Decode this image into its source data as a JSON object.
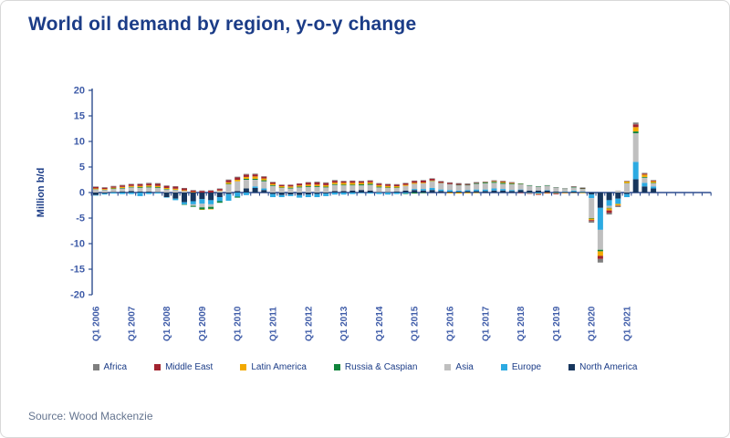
{
  "page": {
    "title": "World oil demand by region, y-o-y change",
    "source": "Source: Wood Mackenzie"
  },
  "colors": {
    "title_navy": "#1b3c87",
    "axis_blue": "#3f5ca8",
    "axis_line": "#2e4d8f",
    "source_gray": "#64748f"
  },
  "chart_data": {
    "type": "bar",
    "stacked": true,
    "title": "World oil demand by region, y-o-y change",
    "ylabel": "Million b/d",
    "ylim": [
      -20,
      20
    ],
    "ytick_step": 5,
    "grid": false,
    "legend_position": "bottom",
    "categories": [
      "Q1 2006",
      "Q2 2006",
      "Q3 2006",
      "Q4 2006",
      "Q1 2007",
      "Q2 2007",
      "Q3 2007",
      "Q4 2007",
      "Q1 2008",
      "Q2 2008",
      "Q3 2008",
      "Q4 2008",
      "Q1 2009",
      "Q2 2009",
      "Q3 2009",
      "Q4 2009",
      "Q1 2010",
      "Q2 2010",
      "Q3 2010",
      "Q4 2010",
      "Q1 2011",
      "Q2 2011",
      "Q3 2011",
      "Q4 2011",
      "Q1 2012",
      "Q2 2012",
      "Q3 2012",
      "Q4 2012",
      "Q1 2013",
      "Q2 2013",
      "Q3 2013",
      "Q4 2013",
      "Q1 2014",
      "Q2 2014",
      "Q3 2014",
      "Q4 2014",
      "Q1 2015",
      "Q2 2015",
      "Q3 2015",
      "Q4 2015",
      "Q1 2016",
      "Q2 2016",
      "Q3 2016",
      "Q4 2016",
      "Q1 2017",
      "Q2 2017",
      "Q3 2017",
      "Q4 2017",
      "Q1 2018",
      "Q2 2018",
      "Q3 2018",
      "Q4 2018",
      "Q1 2019",
      "Q2 2019",
      "Q3 2019",
      "Q4 2019",
      "Q1 2020",
      "Q2 2020",
      "Q3 2020",
      "Q4 2020",
      "Q1 2021",
      "Q2 2021",
      "Q3 2021",
      "Q4 2021"
    ],
    "x_year_labels": [
      "Q1 2006",
      "Q1 2007",
      "Q1 2008",
      "Q1 2009",
      "Q1 2010",
      "Q1 2011",
      "Q1 2012",
      "Q1 2013",
      "Q1 2014",
      "Q1 2015",
      "Q1 2016",
      "Q1 2017",
      "Q1 2018",
      "Q1 2019",
      "Q1 2020",
      "Q1 2021"
    ],
    "stack_order_bottom_to_top": [
      "North America",
      "Europe",
      "Asia",
      "Russia & Caspian",
      "Latin America",
      "Middle East",
      "Africa"
    ],
    "series": [
      {
        "name": "Africa",
        "color": "#7f7f7f",
        "values": [
          0.1,
          0.1,
          0.1,
          0.1,
          0.1,
          0.1,
          0.15,
          0.15,
          0.1,
          0.1,
          0.1,
          0.1,
          0.1,
          0.1,
          0.1,
          0.15,
          0.15,
          0.15,
          0.15,
          0.1,
          0.1,
          0.05,
          0.05,
          0.05,
          0.1,
          0.15,
          0.15,
          0.15,
          0.1,
          0.1,
          0.1,
          0.1,
          0.1,
          0.1,
          0.1,
          0.1,
          0.1,
          0.1,
          0.1,
          0.1,
          0.1,
          0.15,
          0.15,
          0.1,
          0.1,
          0.1,
          0.1,
          0.1,
          0.05,
          0.05,
          0.05,
          0.05,
          0.1,
          0.1,
          0.1,
          0.1,
          -0.3,
          -0.7,
          -0.3,
          -0.2,
          0.1,
          0.35,
          0.15,
          0.1
        ]
      },
      {
        "name": "Middle East",
        "color": "#a2242f",
        "values": [
          0.3,
          0.25,
          0.25,
          0.3,
          0.3,
          0.35,
          0.35,
          0.4,
          0.4,
          0.4,
          0.35,
          0.3,
          0.3,
          0.35,
          0.3,
          0.4,
          0.45,
          0.45,
          0.4,
          0.35,
          0.3,
          0.25,
          0.3,
          0.35,
          0.4,
          0.45,
          0.4,
          0.35,
          0.3,
          0.35,
          0.3,
          0.3,
          0.3,
          0.3,
          0.3,
          0.3,
          0.35,
          0.4,
          0.35,
          0.25,
          0.25,
          0.2,
          0.15,
          0.1,
          0.05,
          0.1,
          0.15,
          0.1,
          -0.1,
          -0.1,
          -0.15,
          -0.1,
          -0.15,
          -0.05,
          0.05,
          0.1,
          -0.2,
          -0.6,
          -0.5,
          -0.1,
          0.05,
          0.55,
          0.2,
          0.15
        ]
      },
      {
        "name": "Latin America",
        "color": "#f2a900",
        "values": [
          0.15,
          0.15,
          0.15,
          0.2,
          0.2,
          0.25,
          0.25,
          0.25,
          0.2,
          0.2,
          0.15,
          0.1,
          -0.1,
          -0.1,
          0.1,
          0.3,
          0.3,
          0.35,
          0.45,
          0.35,
          0.25,
          0.25,
          0.25,
          0.25,
          0.3,
          0.3,
          0.3,
          0.3,
          0.35,
          0.35,
          0.3,
          0.3,
          0.3,
          0.3,
          0.25,
          0.2,
          0.2,
          0.15,
          0.1,
          0.05,
          -0.15,
          -0.2,
          -0.15,
          -0.1,
          0.05,
          0.1,
          0.15,
          0.1,
          0.05,
          -0.05,
          -0.1,
          -0.1,
          -0.1,
          -0.1,
          -0.05,
          -0.1,
          -0.3,
          -0.9,
          -0.4,
          -0.3,
          0.3,
          0.85,
          0.45,
          0.3
        ]
      },
      {
        "name": "Russia & Caspian",
        "color": "#0f843b",
        "values": [
          0.05,
          0.05,
          0.1,
          0.1,
          0.1,
          0.15,
          0.15,
          0.15,
          0.1,
          0.05,
          -0.1,
          -0.2,
          -0.4,
          -0.4,
          -0.3,
          0.1,
          -0.2,
          0.2,
          0.2,
          0.2,
          0.15,
          0.1,
          0.15,
          0.15,
          0.15,
          0.15,
          0.15,
          0.15,
          0.15,
          0.15,
          0.2,
          0.2,
          0.15,
          0.1,
          0.1,
          -0.1,
          -0.2,
          -0.1,
          0.05,
          0.05,
          0.05,
          0.1,
          0.1,
          0.15,
          0.15,
          0.2,
          0.2,
          0.15,
          0.1,
          0.1,
          0.1,
          0.1,
          0.05,
          0.05,
          0.1,
          0.1,
          -0.1,
          -0.3,
          -0.1,
          -0.05,
          0.05,
          0.35,
          0.15,
          0.1
        ]
      },
      {
        "name": "Asia",
        "color": "#bfbfbf",
        "values": [
          0.6,
          0.5,
          0.6,
          0.6,
          0.7,
          0.7,
          0.8,
          0.8,
          0.6,
          0.5,
          0.3,
          -0.3,
          -0.7,
          -0.5,
          0.3,
          1.6,
          1.9,
          1.7,
          1.3,
          1.4,
          1.3,
          0.9,
          0.8,
          1.0,
          1.1,
          1.1,
          1.0,
          1.2,
          1.1,
          1.0,
          0.9,
          1.1,
          0.9,
          0.8,
          0.7,
          0.9,
          1.0,
          1.1,
          1.3,
          1.2,
          1.1,
          1.0,
          0.9,
          1.1,
          1.2,
          1.1,
          1.0,
          1.1,
          1.0,
          0.9,
          0.7,
          0.8,
          0.7,
          0.5,
          0.6,
          0.5,
          -3.9,
          -3.9,
          -0.4,
          0.4,
          1.8,
          5.6,
          1.0,
          0.6
        ]
      },
      {
        "name": "Europe",
        "color": "#2caae2",
        "values": [
          -0.1,
          -0.2,
          -0.2,
          -0.3,
          -0.3,
          -0.7,
          -0.3,
          -0.2,
          -0.1,
          -0.3,
          -0.4,
          -0.6,
          -0.9,
          -0.8,
          -0.8,
          -1.3,
          -0.8,
          -0.5,
          0.3,
          0.3,
          -0.6,
          -0.4,
          -0.3,
          -0.5,
          -0.5,
          -0.6,
          -0.5,
          -0.4,
          -0.4,
          -0.3,
          -0.1,
          -0.2,
          -0.3,
          -0.4,
          -0.3,
          -0.2,
          0.2,
          0.3,
          0.4,
          0.3,
          0.3,
          0.2,
          0.2,
          0.3,
          0.3,
          0.4,
          0.3,
          0.2,
          0.1,
          -0.1,
          -0.2,
          0.1,
          -0.1,
          0.1,
          0.2,
          0.1,
          -0.7,
          -4.3,
          -1.1,
          -1.0,
          -0.6,
          3.4,
          0.7,
          0.4
        ]
      },
      {
        "name": "North America",
        "color": "#17365d",
        "values": [
          -0.5,
          -0.2,
          0.1,
          0.2,
          0.3,
          0.2,
          0.2,
          0.1,
          -0.9,
          -1.2,
          -1.9,
          -1.7,
          -1.3,
          -1.5,
          -0.9,
          -0.3,
          0.3,
          0.8,
          0.9,
          0.5,
          -0.3,
          -0.5,
          -0.4,
          -0.5,
          -0.4,
          -0.3,
          -0.2,
          0.3,
          0.3,
          0.4,
          0.5,
          0.4,
          0.1,
          0.1,
          0.2,
          0.4,
          0.5,
          0.4,
          0.5,
          0.3,
          0.2,
          0.2,
          0.3,
          0.3,
          0.3,
          0.4,
          0.4,
          0.3,
          0.5,
          0.4,
          0.4,
          0.4,
          0.2,
          0.1,
          0.2,
          0.1,
          -0.4,
          -3.0,
          -1.5,
          -1.2,
          -0.3,
          2.6,
          1.2,
          0.8
        ]
      }
    ]
  }
}
